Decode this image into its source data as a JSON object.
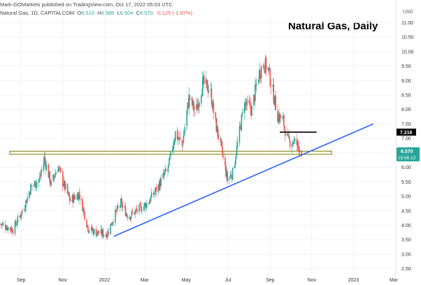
{
  "header": {
    "publisher": "Mark-GOMarkets published on TradingView.com, Oct 17, 2022 05:03 UTC",
    "symbol": "Natural Gas, 1D, CAPITALCOM",
    "o_label": "O",
    "o": "6.510",
    "h_label": "H",
    "h": "6.586",
    "l_label": "L",
    "l": "6.504",
    "c_label": "C",
    "c": "6.570",
    "change": "-0.125 (-1.87%)"
  },
  "currency": "USD",
  "chart_data": {
    "type": "candlestick",
    "title": "Natural Gas, Daily",
    "ylim": [
      2.25,
      11.25
    ],
    "yticks": [
      "2.50",
      "3.00",
      "3.50",
      "4.00",
      "4.50",
      "5.00",
      "5.50",
      "6.00",
      "6.50",
      "7.00",
      "7.50",
      "8.00",
      "8.50",
      "9.00",
      "9.50",
      "10.00",
      "10.50",
      "11.00"
    ],
    "x_start": "2021-08-01",
    "x_end": "2023-02-28",
    "xticks": [
      {
        "date": "2021-09-01",
        "label": "Sep"
      },
      {
        "date": "2021-11-01",
        "label": "Nov"
      },
      {
        "date": "2022-01-01",
        "label": "2022"
      },
      {
        "date": "2022-03-01",
        "label": "Mar"
      },
      {
        "date": "2022-05-01",
        "label": "May"
      },
      {
        "date": "2022-07-01",
        "label": "Jul"
      },
      {
        "date": "2022-09-01",
        "label": "Sep"
      },
      {
        "date": "2022-11-01",
        "label": "Nov"
      },
      {
        "date": "2023-01-01",
        "label": "2023"
      },
      {
        "date": "2023-03-01",
        "label": "Mar"
      }
    ],
    "price_path": [
      {
        "date": "2021-08-01",
        "price": 4.05
      },
      {
        "date": "2021-08-20",
        "price": 3.85
      },
      {
        "date": "2021-09-05",
        "price": 4.6
      },
      {
        "date": "2021-09-15",
        "price": 5.3
      },
      {
        "date": "2021-09-28",
        "price": 5.6
      },
      {
        "date": "2021-10-05",
        "price": 6.3
      },
      {
        "date": "2021-10-15",
        "price": 5.4
      },
      {
        "date": "2021-10-25",
        "price": 6.05
      },
      {
        "date": "2021-11-01",
        "price": 5.5
      },
      {
        "date": "2021-11-12",
        "price": 4.85
      },
      {
        "date": "2021-11-25",
        "price": 5.1
      },
      {
        "date": "2021-12-08",
        "price": 3.9
      },
      {
        "date": "2021-12-20",
        "price": 3.75
      },
      {
        "date": "2022-01-05",
        "price": 3.7
      },
      {
        "date": "2022-01-15",
        "price": 4.3
      },
      {
        "date": "2022-01-25",
        "price": 4.75
      },
      {
        "date": "2022-02-05",
        "price": 4.3
      },
      {
        "date": "2022-02-20",
        "price": 4.55
      },
      {
        "date": "2022-03-05",
        "price": 4.75
      },
      {
        "date": "2022-03-20",
        "price": 5.3
      },
      {
        "date": "2022-04-05",
        "price": 6.0
      },
      {
        "date": "2022-04-15",
        "price": 7.2
      },
      {
        "date": "2022-04-25",
        "price": 6.75
      },
      {
        "date": "2022-05-05",
        "price": 8.4
      },
      {
        "date": "2022-05-15",
        "price": 7.9
      },
      {
        "date": "2022-05-25",
        "price": 8.9
      },
      {
        "date": "2022-06-05",
        "price": 8.7
      },
      {
        "date": "2022-06-12",
        "price": 7.6
      },
      {
        "date": "2022-06-20",
        "price": 6.8
      },
      {
        "date": "2022-06-30",
        "price": 5.6
      },
      {
        "date": "2022-07-08",
        "price": 5.8
      },
      {
        "date": "2022-07-15",
        "price": 6.8
      },
      {
        "date": "2022-07-25",
        "price": 8.2
      },
      {
        "date": "2022-08-05",
        "price": 8.0
      },
      {
        "date": "2022-08-15",
        "price": 9.2
      },
      {
        "date": "2022-08-22",
        "price": 9.6
      },
      {
        "date": "2022-08-29",
        "price": 9.4
      },
      {
        "date": "2022-09-05",
        "price": 8.6
      },
      {
        "date": "2022-09-12",
        "price": 7.8
      },
      {
        "date": "2022-09-20",
        "price": 7.6
      },
      {
        "date": "2022-09-27",
        "price": 6.9
      },
      {
        "date": "2022-10-05",
        "price": 6.9
      },
      {
        "date": "2022-10-10",
        "price": 6.8
      },
      {
        "date": "2022-10-17",
        "price": 6.57
      }
    ],
    "support_zone": [
      6.45,
      6.56
    ],
    "support_zone_range": [
      "2021-08-01",
      "2022-11-30"
    ],
    "resistance_level": {
      "price": 7.216,
      "label": "7.216",
      "from": "2022-09-15",
      "to": "2022-11-08"
    },
    "trendline": {
      "from": {
        "date": "2022-01-15",
        "price": 3.62
      },
      "to": {
        "date": "2023-01-30",
        "price": 7.5
      }
    },
    "last_price": {
      "label": "6.570",
      "countdown": "15:56:12",
      "price": 6.57
    }
  },
  "colors": {
    "up": "#26a69a",
    "down": "#ef5350",
    "zone_fill": "#fdfde0",
    "zone_stroke": "#7a7a1e",
    "trend": "#2962ff",
    "resistance": "#000000",
    "last_price_bg": "#26a69a",
    "grid": "#f0f3fa",
    "axis_text": "#333333"
  }
}
